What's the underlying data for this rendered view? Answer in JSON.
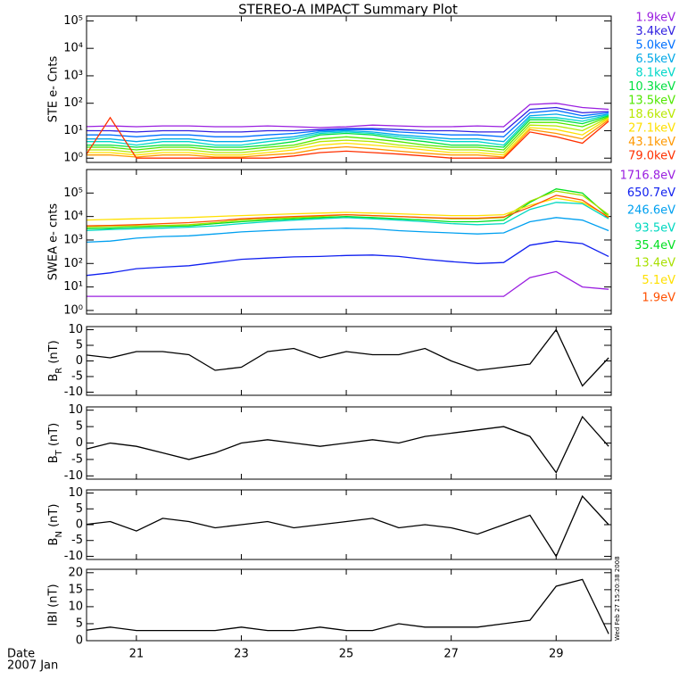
{
  "chart_data": [
    {
      "type": "line",
      "title": "STEREO-A IMPACT Summary Plot",
      "ylabel": "STE e- Cnts",
      "log": true,
      "x": [
        20,
        20.5,
        21,
        21.5,
        22,
        22.5,
        23,
        23.5,
        24,
        24.5,
        25,
        25.5,
        26,
        26.5,
        27,
        27.5,
        28,
        28.5,
        29,
        29.5,
        30
      ],
      "xlim": [
        20.05,
        30.05
      ],
      "xticks": [
        21,
        23,
        25,
        27,
        29
      ],
      "ylim": [
        0.7,
        150000
      ],
      "yticks": [
        {
          "value": 1,
          "label": "10⁰"
        },
        {
          "value": 10,
          "label": "10¹"
        },
        {
          "value": 100,
          "label": "10²"
        },
        {
          "value": 1000,
          "label": "10³"
        },
        {
          "value": 10000,
          "label": "10⁴"
        },
        {
          "value": 100000,
          "label": "10⁵"
        }
      ],
      "series": [
        {
          "name": "1.9keV",
          "color": "#9a1ee0",
          "values": [
            14,
            15,
            14,
            15,
            15,
            14,
            14,
            15,
            14,
            13,
            14,
            16,
            15,
            14,
            14,
            15,
            14,
            90,
            100,
            70,
            60
          ]
        },
        {
          "name": "3.4keV",
          "color": "#3020e0",
          "values": [
            10,
            10,
            9,
            10,
            10,
            9,
            9,
            10,
            10,
            11,
            12,
            12,
            11,
            10,
            10,
            9,
            9,
            60,
            70,
            45,
            50
          ]
        },
        {
          "name": "5.0keV",
          "color": "#0070ff",
          "values": [
            7,
            7,
            6,
            7,
            7,
            6,
            6,
            7,
            8,
            10,
            11,
            11,
            9,
            8,
            7,
            7,
            6,
            45,
            55,
            35,
            45
          ]
        },
        {
          "name": "6.5keV",
          "color": "#00a8e8",
          "values": [
            5,
            5,
            4,
            5,
            5,
            4,
            4,
            5,
            6,
            9,
            10,
            9,
            7,
            6,
            5,
            5,
            4,
            35,
            40,
            28,
            40
          ]
        },
        {
          "name": "8.1keV",
          "color": "#00d8c8",
          "values": [
            4,
            4,
            3,
            4,
            4,
            3,
            3,
            4,
            5,
            8,
            9,
            8,
            6,
            5,
            4,
            4,
            3,
            30,
            30,
            22,
            38
          ]
        },
        {
          "name": "10.3keV",
          "color": "#00e040",
          "values": [
            3,
            3,
            2.5,
            3,
            3,
            2.5,
            2.5,
            3,
            4,
            7,
            8,
            7,
            5,
            4,
            3,
            3,
            2.5,
            25,
            25,
            18,
            35
          ]
        },
        {
          "name": "13.5keV",
          "color": "#50e800",
          "values": [
            2.5,
            2.5,
            2,
            2.5,
            2.5,
            2,
            2,
            2.5,
            3,
            5,
            6,
            5,
            4,
            3,
            2.5,
            2.5,
            2,
            20,
            20,
            14,
            32
          ]
        },
        {
          "name": "18.6keV",
          "color": "#b8e800",
          "values": [
            2,
            2,
            1.6,
            2,
            2,
            1.6,
            1.6,
            2,
            2.5,
            4,
            4.5,
            4,
            3,
            2.5,
            2,
            2,
            1.6,
            16,
            15,
            10,
            30
          ]
        },
        {
          "name": "27.1keV",
          "color": "#ffe000",
          "values": [
            1.6,
            1.6,
            1.3,
            1.6,
            1.6,
            1.3,
            1.3,
            1.6,
            2,
            3,
            3.5,
            3,
            2.5,
            2,
            1.6,
            1.6,
            1.3,
            13,
            11,
            7,
            28
          ]
        },
        {
          "name": "43.1keV",
          "color": "#ff9800",
          "values": [
            1.3,
            1.3,
            1.1,
            1.3,
            1.3,
            1.1,
            1.1,
            1.3,
            1.5,
            2.2,
            2.6,
            2.2,
            1.8,
            1.5,
            1.3,
            1.3,
            1.1,
            11,
            8,
            5,
            25
          ]
        },
        {
          "name": "79.0keV",
          "color": "#ff3000",
          "values": [
            1,
            30,
            1,
            1,
            1,
            1,
            1,
            1,
            1.2,
            1.6,
            1.8,
            1.6,
            1.4,
            1.2,
            1,
            1,
            1,
            9,
            6,
            3.5,
            22
          ]
        }
      ]
    },
    {
      "type": "line",
      "ylabel": "SWEA e- cnts",
      "log": true,
      "x": [
        20,
        20.5,
        21,
        21.5,
        22,
        22.5,
        23,
        23.5,
        24,
        24.5,
        25,
        25.5,
        26,
        26.5,
        27,
        27.5,
        28,
        28.5,
        29,
        29.5,
        30
      ],
      "xlim": [
        20.05,
        30.05
      ],
      "xticks": [
        21,
        23,
        25,
        27,
        29
      ],
      "ylim": [
        0.7,
        1000000
      ],
      "yticks": [
        {
          "value": 1,
          "label": "10⁰"
        },
        {
          "value": 10,
          "label": "10¹"
        },
        {
          "value": 100,
          "label": "10²"
        },
        {
          "value": 1000,
          "label": "10³"
        },
        {
          "value": 10000,
          "label": "10⁴"
        },
        {
          "value": 100000,
          "label": "10⁵"
        }
      ],
      "series": [
        {
          "name": "1716.8eV",
          "color": "#9a1ee0",
          "values": [
            4,
            4,
            4,
            4,
            4,
            4,
            4,
            4,
            4,
            4,
            4,
            4,
            4,
            4,
            4,
            4,
            4,
            25,
            45,
            10,
            8
          ]
        },
        {
          "name": "650.7eV",
          "color": "#1020f0",
          "values": [
            30,
            40,
            60,
            70,
            80,
            110,
            150,
            170,
            190,
            200,
            220,
            230,
            200,
            150,
            120,
            100,
            110,
            600,
            900,
            700,
            200
          ]
        },
        {
          "name": "246.6eV",
          "color": "#00a0f0",
          "values": [
            800,
            900,
            1200,
            1400,
            1500,
            1800,
            2200,
            2500,
            2800,
            3000,
            3200,
            3000,
            2500,
            2200,
            2000,
            1800,
            2000,
            6000,
            9000,
            7000,
            2500
          ]
        },
        {
          "name": "93.5eV",
          "color": "#00d8c0",
          "values": [
            2500,
            2800,
            3000,
            3200,
            3500,
            4000,
            5000,
            6000,
            7000,
            8000,
            9000,
            8000,
            7000,
            6000,
            5000,
            4500,
            5000,
            20000,
            40000,
            35000,
            8000
          ]
        },
        {
          "name": "35.4eV",
          "color": "#00e020",
          "values": [
            3000,
            3200,
            3500,
            3800,
            4000,
            5000,
            6000,
            7000,
            8000,
            9000,
            10000,
            9000,
            8000,
            7000,
            6000,
            6000,
            7000,
            40000,
            150000,
            100000,
            10000
          ]
        },
        {
          "name": "13.4eV",
          "color": "#a8e000",
          "values": [
            3500,
            3800,
            4000,
            4200,
            4500,
            5500,
            7000,
            8000,
            9000,
            10000,
            12000,
            11000,
            10000,
            9000,
            8000,
            8000,
            9000,
            45000,
            120000,
            80000,
            12000
          ]
        },
        {
          "name": "5.1eV",
          "color": "#ffe000",
          "values": [
            7000,
            7500,
            8000,
            8500,
            9000,
            10000,
            11000,
            12000,
            13000,
            14000,
            15000,
            14000,
            13000,
            12000,
            11000,
            11000,
            12000,
            30000,
            60000,
            40000,
            10000
          ]
        },
        {
          "name": "1.9eV",
          "color": "#ff5000",
          "values": [
            4000,
            4200,
            4500,
            5000,
            5500,
            6500,
            8000,
            9000,
            10000,
            11000,
            12000,
            11000,
            10000,
            9000,
            8500,
            8500,
            9500,
            25000,
            80000,
            50000,
            9000
          ]
        }
      ]
    },
    {
      "type": "line",
      "ylabel": [
        "B",
        "R",
        " (nT)"
      ],
      "x": [
        20,
        20.5,
        21,
        21.5,
        22,
        22.5,
        23,
        23.5,
        24,
        24.5,
        25,
        25.5,
        26,
        26.5,
        27,
        27.5,
        28,
        28.5,
        29,
        29.5,
        30
      ],
      "xlim": [
        20.05,
        30.05
      ],
      "xticks": [
        21,
        23,
        25,
        27,
        29
      ],
      "ylim": [
        -11,
        11
      ],
      "yticks": [
        -10,
        -5,
        0,
        5,
        10
      ],
      "series": [
        {
          "color": "#000000",
          "values": [
            2,
            1,
            3,
            3,
            2,
            -3,
            -2,
            3,
            4,
            1,
            3,
            2,
            2,
            4,
            0,
            -3,
            -2,
            -1,
            10,
            -8,
            1
          ]
        }
      ]
    },
    {
      "type": "line",
      "ylabel": [
        "B",
        "T",
        " (nT)"
      ],
      "x": [
        20,
        20.5,
        21,
        21.5,
        22,
        22.5,
        23,
        23.5,
        24,
        24.5,
        25,
        25.5,
        26,
        26.5,
        27,
        27.5,
        28,
        28.5,
        29,
        29.5,
        30
      ],
      "xlim": [
        20.05,
        30.05
      ],
      "xticks": [
        21,
        23,
        25,
        27,
        29
      ],
      "ylim": [
        -11,
        11
      ],
      "yticks": [
        -10,
        -5,
        0,
        5,
        10
      ],
      "series": [
        {
          "color": "#000000",
          "values": [
            -2,
            0,
            -1,
            -3,
            -5,
            -3,
            0,
            1,
            0,
            -1,
            0,
            1,
            0,
            2,
            3,
            4,
            5,
            2,
            -9,
            8,
            -1
          ]
        }
      ]
    },
    {
      "type": "line",
      "ylabel": [
        "B",
        "N",
        " (nT)"
      ],
      "x": [
        20,
        20.5,
        21,
        21.5,
        22,
        22.5,
        23,
        23.5,
        24,
        24.5,
        25,
        25.5,
        26,
        26.5,
        27,
        27.5,
        28,
        28.5,
        29,
        29.5,
        30
      ],
      "xlim": [
        20.05,
        30.05
      ],
      "xticks": [
        21,
        23,
        25,
        27,
        29
      ],
      "ylim": [
        -11,
        11
      ],
      "yticks": [
        -10,
        -5,
        0,
        5,
        10
      ],
      "series": [
        {
          "color": "#000000",
          "values": [
            0,
            1,
            -2,
            2,
            1,
            -1,
            0,
            1,
            -1,
            0,
            1,
            2,
            -1,
            0,
            -1,
            -3,
            0,
            3,
            -10,
            9,
            0
          ]
        }
      ]
    },
    {
      "type": "line",
      "ylabel": "IBI (nT)",
      "show_xticklabels": true,
      "x": [
        20,
        20.5,
        21,
        21.5,
        22,
        22.5,
        23,
        23.5,
        24,
        24.5,
        25,
        25.5,
        26,
        26.5,
        27,
        27.5,
        28,
        28.5,
        29,
        29.5,
        30
      ],
      "xlim": [
        20.05,
        30.05
      ],
      "xticks": [
        21,
        23,
        25,
        27,
        29
      ],
      "ylim": [
        0,
        21
      ],
      "yticks": [
        0,
        5,
        10,
        15,
        20
      ],
      "date_label": "Date",
      "month_label": "2007 Jan",
      "timestamp": "Wed Feb 27 15:20:38 2008",
      "series": [
        {
          "color": "#000000",
          "values": [
            3,
            4,
            3,
            3,
            3,
            3,
            4,
            3,
            3,
            4,
            3,
            3,
            5,
            4,
            4,
            4,
            5,
            6,
            16,
            18,
            2
          ]
        }
      ]
    }
  ]
}
